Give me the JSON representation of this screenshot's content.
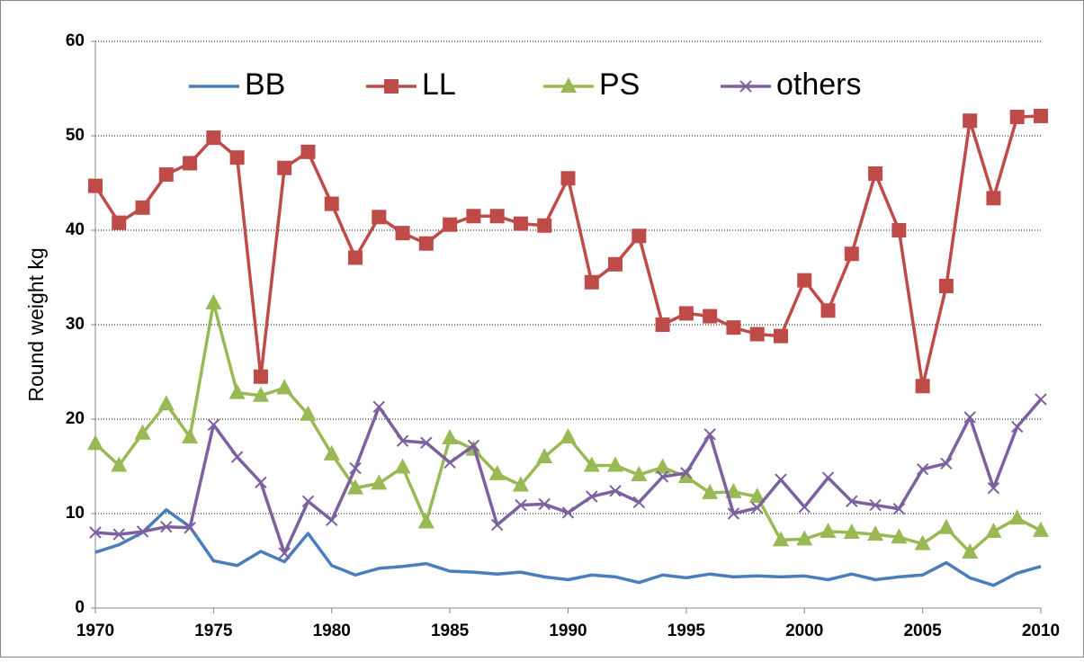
{
  "chart_data": {
    "type": "line",
    "ylabel": "Round weight kg",
    "x": [
      1970,
      1971,
      1972,
      1973,
      1974,
      1975,
      1976,
      1977,
      1978,
      1979,
      1980,
      1981,
      1982,
      1983,
      1984,
      1985,
      1986,
      1987,
      1988,
      1989,
      1990,
      1991,
      1992,
      1993,
      1994,
      1995,
      1996,
      1997,
      1998,
      1999,
      2000,
      2001,
      2002,
      2003,
      2004,
      2005,
      2006,
      2007,
      2008,
      2009,
      2010
    ],
    "xlim": [
      1970,
      2010
    ],
    "xticks": [
      1970,
      1975,
      1980,
      1985,
      1990,
      1995,
      2000,
      2005,
      2010
    ],
    "ylim": [
      0,
      60
    ],
    "yticks": [
      0,
      10,
      20,
      30,
      40,
      50,
      60
    ],
    "grid": true,
    "legend": "top",
    "series": [
      {
        "name": "BB",
        "color": "#4a7ebb",
        "marker": "none",
        "values": [
          5.9,
          6.7,
          8.0,
          10.4,
          8.6,
          5.0,
          4.5,
          6.0,
          4.9,
          7.9,
          4.5,
          3.5,
          4.2,
          4.4,
          4.7,
          3.9,
          3.8,
          3.6,
          3.8,
          3.3,
          3.0,
          3.5,
          3.3,
          2.7,
          3.5,
          3.2,
          3.6,
          3.3,
          3.4,
          3.3,
          3.4,
          3.0,
          3.6,
          3.0,
          3.3,
          3.5,
          4.8,
          3.2,
          2.4,
          3.7,
          4.4
        ]
      },
      {
        "name": "LL",
        "color": "#be4b48",
        "marker": "square",
        "values": [
          44.7,
          40.8,
          42.4,
          45.9,
          47.1,
          49.8,
          47.7,
          24.5,
          46.6,
          48.3,
          42.8,
          37.1,
          41.4,
          39.7,
          38.6,
          40.6,
          41.5,
          41.5,
          40.7,
          40.5,
          45.5,
          34.5,
          36.4,
          39.4,
          30.0,
          31.2,
          30.9,
          29.7,
          29.0,
          28.8,
          34.7,
          31.5,
          37.5,
          46.0,
          40.0,
          23.5,
          34.1,
          51.6,
          43.4,
          52.0,
          52.1
        ]
      },
      {
        "name": "PS",
        "color": "#98b954",
        "marker": "triangle",
        "values": [
          17.4,
          15.1,
          18.5,
          21.6,
          18.1,
          32.3,
          22.8,
          22.5,
          23.3,
          20.5,
          16.3,
          12.7,
          13.2,
          14.9,
          9.1,
          18.0,
          16.8,
          14.2,
          13.0,
          16.0,
          18.1,
          15.1,
          15.1,
          14.1,
          14.9,
          13.9,
          12.2,
          12.3,
          11.8,
          7.2,
          7.3,
          8.1,
          8.0,
          7.8,
          7.5,
          6.8,
          8.5,
          5.9,
          8.1,
          9.5,
          8.2
        ]
      },
      {
        "name": "others",
        "color": "#7d60a0",
        "marker": "x",
        "values": [
          8.0,
          7.8,
          8.1,
          8.6,
          8.5,
          19.4,
          16.0,
          13.3,
          5.8,
          11.3,
          9.3,
          14.8,
          21.3,
          17.7,
          17.5,
          15.4,
          17.2,
          8.8,
          10.9,
          11.0,
          10.1,
          11.8,
          12.4,
          11.2,
          13.9,
          14.3,
          18.4,
          10.0,
          10.6,
          13.6,
          10.7,
          13.8,
          11.3,
          10.9,
          10.5,
          14.7,
          15.3,
          20.2,
          12.7,
          19.2,
          22.1
        ]
      }
    ]
  }
}
